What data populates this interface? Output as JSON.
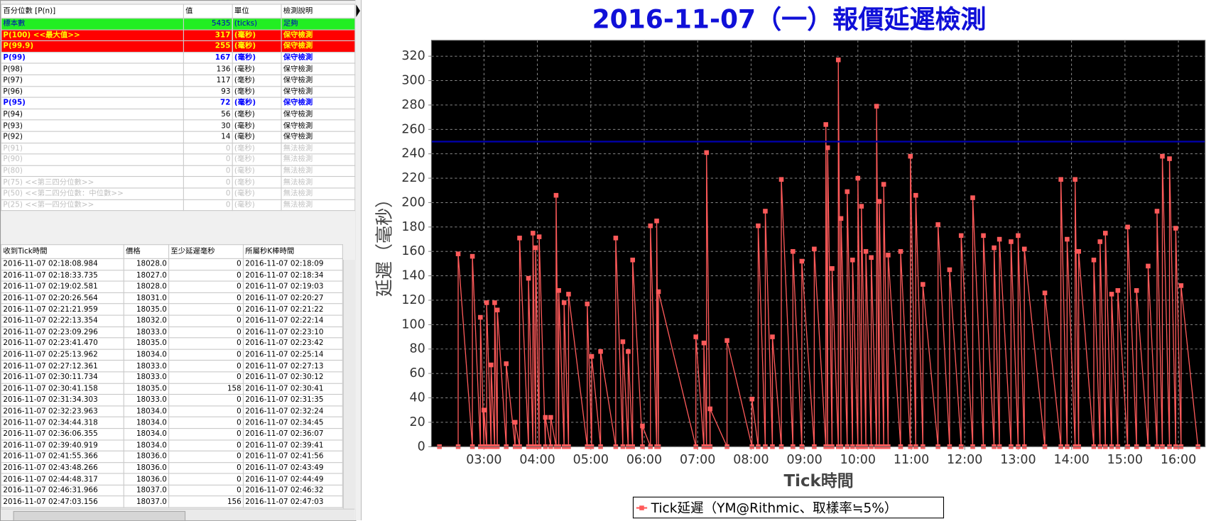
{
  "percentile_table": {
    "headers": [
      "百分位數 [P(n)]",
      "值",
      "單位",
      "檢測說明"
    ],
    "styles": [
      "green",
      "red",
      "red",
      "blue",
      "normal",
      "normal",
      "normal",
      "blue",
      "normal",
      "normal",
      "normal",
      "disabled",
      "disabled",
      "disabled",
      "disabled",
      "disabled",
      "disabled"
    ],
    "rows": [
      [
        "標本數",
        "5435",
        "(ticks)",
        "足夠"
      ],
      [
        "P(100)  <<最大值>>",
        "317",
        "(毫秒)",
        "保守檢測"
      ],
      [
        "P(99.9)",
        "255",
        "(毫秒)",
        "保守檢測"
      ],
      [
        "P(99)",
        "167",
        "(毫秒)",
        "保守檢測"
      ],
      [
        "P(98)",
        "136",
        "(毫秒)",
        "保守檢測"
      ],
      [
        "P(97)",
        "117",
        "(毫秒)",
        "保守檢測"
      ],
      [
        "P(96)",
        "93",
        "(毫秒)",
        "保守檢測"
      ],
      [
        "P(95)",
        "72",
        "(毫秒)",
        "保守檢測"
      ],
      [
        "P(94)",
        "56",
        "(毫秒)",
        "保守檢測"
      ],
      [
        "P(93)",
        "30",
        "(毫秒)",
        "保守檢測"
      ],
      [
        "P(92)",
        "14",
        "(毫秒)",
        "保守檢測"
      ],
      [
        "P(91)",
        "0",
        "(毫秒)",
        "無法檢測"
      ],
      [
        "P(90)",
        "0",
        "(毫秒)",
        "無法檢測"
      ],
      [
        "P(80)",
        "0",
        "(毫秒)",
        "無法檢測"
      ],
      [
        "P(75)  <<第三四分位數>>",
        "0",
        "(毫秒)",
        "無法檢測"
      ],
      [
        "P(50)  <<第二四分位數：中位數>>",
        "0",
        "(毫秒)",
        "無法檢測"
      ],
      [
        "P(25)  <<第一四分位數>>",
        "0",
        "(毫秒)",
        "無法檢測"
      ]
    ]
  },
  "tick_table": {
    "headers": [
      "收到Tick時間",
      "價格",
      "至少延遲毫秒",
      "所屬秒K棒時間"
    ],
    "rows": [
      [
        "2016-11-07 02:18:08.984",
        "18028.0",
        "0",
        "2016-11-07 02:18:09"
      ],
      [
        "2016-11-07 02:18:33.735",
        "18027.0",
        "0",
        "2016-11-07 02:18:34"
      ],
      [
        "2016-11-07 02:19:02.581",
        "18028.0",
        "0",
        "2016-11-07 02:19:03"
      ],
      [
        "2016-11-07 02:20:26.564",
        "18031.0",
        "0",
        "2016-11-07 02:20:27"
      ],
      [
        "2016-11-07 02:21:21.959",
        "18035.0",
        "0",
        "2016-11-07 02:21:22"
      ],
      [
        "2016-11-07 02:22:13.354",
        "18032.0",
        "0",
        "2016-11-07 02:22:14"
      ],
      [
        "2016-11-07 02:23:09.296",
        "18033.0",
        "0",
        "2016-11-07 02:23:10"
      ],
      [
        "2016-11-07 02:23:41.470",
        "18035.0",
        "0",
        "2016-11-07 02:23:42"
      ],
      [
        "2016-11-07 02:25:13.962",
        "18034.0",
        "0",
        "2016-11-07 02:25:14"
      ],
      [
        "2016-11-07 02:27:12.361",
        "18033.0",
        "0",
        "2016-11-07 02:27:13"
      ],
      [
        "2016-11-07 02:30:11.734",
        "18033.0",
        "0",
        "2016-11-07 02:30:12"
      ],
      [
        "2016-11-07 02:30:41.158",
        "18035.0",
        "158",
        "2016-11-07 02:30:41"
      ],
      [
        "2016-11-07 02:31:34.303",
        "18033.0",
        "0",
        "2016-11-07 02:31:35"
      ],
      [
        "2016-11-07 02:32:23.963",
        "18034.0",
        "0",
        "2016-11-07 02:32:24"
      ],
      [
        "2016-11-07 02:34:44.318",
        "18034.0",
        "0",
        "2016-11-07 02:34:45"
      ],
      [
        "2016-11-07 02:36:06.355",
        "18034.0",
        "0",
        "2016-11-07 02:36:07"
      ],
      [
        "2016-11-07 02:39:40.919",
        "18034.0",
        "0",
        "2016-11-07 02:39:41"
      ],
      [
        "2016-11-07 02:41:55.366",
        "18036.0",
        "0",
        "2016-11-07 02:41:56"
      ],
      [
        "2016-11-07 02:43:48.266",
        "18036.0",
        "0",
        "2016-11-07 02:43:49"
      ],
      [
        "2016-11-07 02:44:48.317",
        "18036.0",
        "0",
        "2016-11-07 02:44:49"
      ],
      [
        "2016-11-07 02:46:31.966",
        "18037.0",
        "0",
        "2016-11-07 02:46:32"
      ],
      [
        "2016-11-07 02:47:03.156",
        "18037.0",
        "156",
        "2016-11-07 02:47:03"
      ]
    ]
  },
  "chart_data": {
    "type": "line",
    "title": "2016-11-07（一）報價延遲檢測",
    "x_label": "Tick時間",
    "y_label": "延遲（毫秒）",
    "xlim": [
      "02:01",
      "16:30"
    ],
    "xticks": [
      "03:00",
      "04:00",
      "05:00",
      "06:00",
      "07:00",
      "08:00",
      "09:00",
      "10:00",
      "11:00",
      "12:00",
      "13:00",
      "14:00",
      "15:00",
      "16:00"
    ],
    "ylim": [
      0,
      333
    ],
    "yticks": [
      0,
      20,
      40,
      60,
      80,
      100,
      120,
      140,
      160,
      180,
      200,
      220,
      240,
      260,
      280,
      300,
      320
    ],
    "grid": true,
    "threshold": 250,
    "threshold_color": "#0000b0",
    "series": [
      {
        "name": "Tick延遲（YM@Rithmic、取樣率≒5%）",
        "color": "#ff5a5a",
        "x": [
          "02:10",
          "02:31",
          "02:31",
          "02:47",
          "02:47",
          "02:56",
          "02:56",
          "03:00",
          "03:00",
          "03:03",
          "03:03",
          "03:08",
          "03:08",
          "03:12",
          "03:12",
          "03:15",
          "03:15",
          "03:25",
          "03:25",
          "03:35",
          "03:35",
          "03:40",
          "03:40",
          "03:50",
          "03:50",
          "03:55",
          "03:55",
          "03:58",
          "03:58",
          "04:02",
          "04:02",
          "04:09",
          "04:09",
          "04:15",
          "04:15",
          "04:21",
          "04:21",
          "04:24",
          "04:24",
          "04:30",
          "04:30",
          "04:35",
          "04:35",
          "04:56",
          "04:56",
          "05:01",
          "05:01",
          "05:11",
          "05:11",
          "05:28",
          "05:28",
          "05:36",
          "05:36",
          "05:42",
          "05:42",
          "05:47",
          "05:47",
          "05:58",
          "05:58",
          "06:07",
          "06:07",
          "06:14",
          "06:14",
          "06:16",
          "06:16",
          "06:58",
          "06:58",
          "07:07",
          "07:07",
          "07:10",
          "07:10",
          "07:14",
          "07:14",
          "07:33",
          "07:33",
          "08:01",
          "08:01",
          "08:08",
          "08:08",
          "08:16",
          "08:16",
          "08:24",
          "08:24",
          "08:34",
          "08:34",
          "08:47",
          "08:47",
          "08:57",
          "08:57",
          "09:11",
          "09:11",
          "09:24",
          "09:24",
          "09:26",
          "09:26",
          "09:31",
          "09:31",
          "09:38",
          "09:38",
          "09:41",
          "09:41",
          "09:48",
          "09:48",
          "09:54",
          "09:54",
          "10:00",
          "10:00",
          "10:04",
          "10:04",
          "10:09",
          "10:09",
          "10:15",
          "10:15",
          "10:21",
          "10:21",
          "10:24",
          "10:24",
          "10:29",
          "10:29",
          "10:34",
          "10:34",
          "10:48",
          "10:48",
          "10:59",
          "10:59",
          "11:05",
          "11:05",
          "11:13",
          "11:13",
          "11:30",
          "11:30",
          "11:43",
          "11:43",
          "11:56",
          "11:56",
          "12:09",
          "12:09",
          "12:21",
          "12:21",
          "12:33",
          "12:33",
          "12:39",
          "12:39",
          "12:52",
          "12:52",
          "13:00",
          "13:00",
          "13:07",
          "13:07",
          "13:30",
          "13:30",
          "13:48",
          "13:48",
          "13:55",
          "13:55",
          "14:04",
          "14:04",
          "14:08",
          "14:08",
          "14:25",
          "14:25",
          "14:32",
          "14:32",
          "14:38",
          "14:38",
          "14:45",
          "14:45",
          "14:52",
          "14:52",
          "15:03",
          "15:03",
          "15:13",
          "15:13",
          "15:26",
          "15:26",
          "15:36",
          "15:36",
          "15:42",
          "15:42",
          "15:50",
          "15:50",
          "15:57",
          "15:57",
          "16:03",
          "16:03",
          "16:22"
        ],
        "values": [
          0,
          0,
          158,
          0,
          156,
          0,
          106,
          0,
          30,
          0,
          118,
          0,
          67,
          0,
          118,
          0,
          112,
          0,
          68,
          0,
          20,
          0,
          171,
          0,
          138,
          0,
          175,
          0,
          163,
          0,
          172,
          0,
          24,
          0,
          24,
          0,
          206,
          0,
          128,
          0,
          118,
          0,
          125,
          0,
          117,
          0,
          74,
          0,
          78,
          0,
          171,
          0,
          86,
          0,
          78,
          0,
          153,
          0,
          17,
          0,
          181,
          0,
          185,
          0,
          127,
          0,
          90,
          0,
          85,
          0,
          241,
          0,
          31,
          0,
          87,
          0,
          39,
          0,
          181,
          0,
          193,
          0,
          90,
          0,
          219,
          0,
          160,
          0,
          152,
          0,
          162,
          0,
          264,
          0,
          245,
          0,
          146,
          0,
          317,
          0,
          187,
          0,
          209,
          0,
          153,
          0,
          220,
          0,
          197,
          0,
          160,
          0,
          155,
          0,
          279,
          0,
          201,
          0,
          215,
          0,
          157,
          0,
          160,
          0,
          238,
          0,
          206,
          0,
          133,
          0,
          182,
          0,
          145,
          0,
          173,
          0,
          204,
          0,
          173,
          0,
          163,
          0,
          170,
          0,
          168,
          0,
          173,
          0,
          162,
          0,
          126,
          0,
          219,
          0,
          170,
          0,
          219,
          0,
          160,
          0,
          153,
          0,
          168,
          0,
          175,
          0,
          125,
          0,
          128,
          0,
          180,
          0,
          128,
          0,
          148,
          0,
          193,
          0,
          238,
          0,
          236,
          0,
          179,
          0,
          132,
          0
        ]
      }
    ]
  }
}
